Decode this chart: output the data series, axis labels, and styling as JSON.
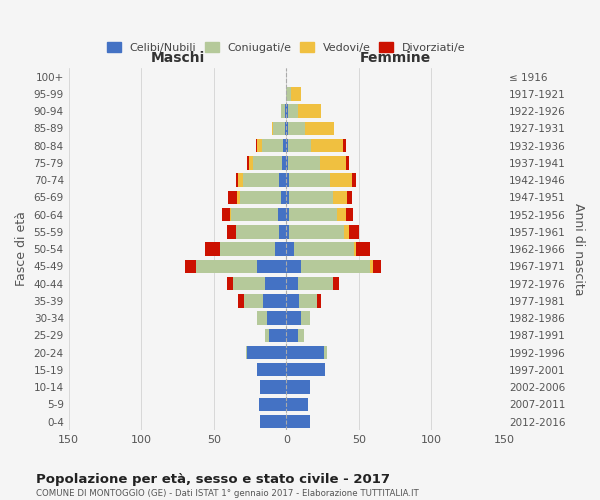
{
  "age_groups": [
    "0-4",
    "5-9",
    "10-14",
    "15-19",
    "20-24",
    "25-29",
    "30-34",
    "35-39",
    "40-44",
    "45-49",
    "50-54",
    "55-59",
    "60-64",
    "65-69",
    "70-74",
    "75-79",
    "80-84",
    "85-89",
    "90-94",
    "95-99",
    "100+"
  ],
  "birth_years": [
    "2012-2016",
    "2007-2011",
    "2002-2006",
    "1997-2001",
    "1992-1996",
    "1987-1991",
    "1982-1986",
    "1977-1981",
    "1972-1976",
    "1967-1971",
    "1962-1966",
    "1957-1961",
    "1952-1956",
    "1947-1951",
    "1942-1946",
    "1937-1941",
    "1932-1936",
    "1927-1931",
    "1922-1926",
    "1917-1921",
    "≤ 1916"
  ],
  "males": {
    "celibi": [
      18,
      19,
      18,
      20,
      27,
      12,
      13,
      16,
      15,
      20,
      8,
      5,
      6,
      4,
      5,
      3,
      2,
      1,
      1,
      0,
      0
    ],
    "coniugati": [
      0,
      0,
      0,
      0,
      1,
      3,
      7,
      13,
      22,
      42,
      38,
      30,
      32,
      28,
      25,
      20,
      15,
      8,
      3,
      0,
      0
    ],
    "vedovi": [
      0,
      0,
      0,
      0,
      0,
      0,
      0,
      0,
      0,
      0,
      0,
      0,
      1,
      2,
      3,
      3,
      3,
      1,
      0,
      0,
      0
    ],
    "divorziati": [
      0,
      0,
      0,
      0,
      0,
      0,
      0,
      4,
      4,
      8,
      10,
      6,
      5,
      6,
      2,
      1,
      1,
      0,
      0,
      0,
      0
    ]
  },
  "females": {
    "nubili": [
      16,
      15,
      16,
      27,
      26,
      8,
      10,
      9,
      8,
      10,
      5,
      2,
      2,
      2,
      2,
      1,
      1,
      1,
      1,
      0,
      0
    ],
    "coniugate": [
      0,
      0,
      0,
      0,
      2,
      4,
      6,
      12,
      24,
      48,
      42,
      38,
      33,
      30,
      28,
      22,
      16,
      12,
      7,
      3,
      0
    ],
    "vedove": [
      0,
      0,
      0,
      0,
      0,
      0,
      0,
      0,
      0,
      2,
      1,
      3,
      6,
      10,
      15,
      18,
      22,
      20,
      16,
      7,
      0
    ],
    "divorziate": [
      0,
      0,
      0,
      0,
      0,
      0,
      0,
      3,
      4,
      5,
      10,
      7,
      5,
      3,
      3,
      2,
      2,
      0,
      0,
      0,
      0
    ]
  },
  "colors": {
    "celibi": "#4472C4",
    "coniugati": "#b5c99a",
    "vedovi": "#f0c040",
    "divorziati": "#cc1100"
  },
  "title": "Popolazione per età, sesso e stato civile - 2017",
  "subtitle": "COMUNE DI MONTOGGIO (GE) - Dati ISTAT 1° gennaio 2017 - Elaborazione TUTTITALIA.IT",
  "xlabel_left": "Maschi",
  "xlabel_right": "Femmine",
  "ylabel_left": "Fasce di età",
  "ylabel_right": "Anni di nascita",
  "xlim": 150,
  "background_color": "#f5f5f5",
  "grid_color": "#cccccc"
}
